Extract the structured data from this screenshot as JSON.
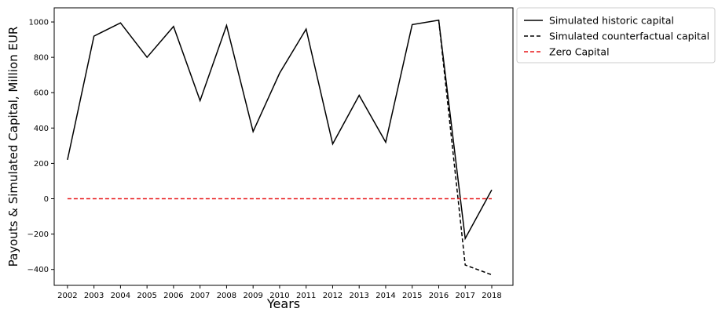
{
  "chart_data": {
    "type": "line",
    "title": "",
    "xlabel": "Years",
    "ylabel": "Payouts & Simulated Capital, Million EUR",
    "x": [
      2002,
      2003,
      2004,
      2005,
      2006,
      2007,
      2008,
      2009,
      2010,
      2011,
      2012,
      2013,
      2014,
      2015,
      2016,
      2017,
      2018
    ],
    "x_tick_labels": [
      "2002",
      "2003",
      "2004",
      "2005",
      "2006",
      "2007",
      "2008",
      "2009",
      "2010",
      "2011",
      "2012",
      "2013",
      "2014",
      "2015",
      "2016",
      "2017",
      "2018"
    ],
    "xlim": [
      2001.5,
      2018.8
    ],
    "ylim": [
      -490,
      1080
    ],
    "y_ticks": [
      -400,
      -200,
      0,
      200,
      400,
      600,
      800,
      1000
    ],
    "y_tick_labels": [
      "−400",
      "−200",
      "0",
      "200",
      "400",
      "600",
      "800",
      "1000"
    ],
    "grid": false,
    "legend_position": "outside-top-right",
    "series": [
      {
        "name": "Simulated historic capital",
        "color": "#000000",
        "dash": "solid",
        "x": [
          2002,
          2003,
          2004,
          2005,
          2006,
          2007,
          2008,
          2009,
          2010,
          2011,
          2012,
          2013,
          2014,
          2015,
          2016,
          2017,
          2018
        ],
        "values": [
          220,
          920,
          995,
          800,
          975,
          555,
          980,
          380,
          710,
          960,
          310,
          585,
          320,
          985,
          1010,
          -225,
          50
        ]
      },
      {
        "name": "Simulated counterfactual capital",
        "color": "#000000",
        "dash": "dashed",
        "x": [
          2016,
          2017,
          2018
        ],
        "values": [
          1010,
          -375,
          -430
        ]
      },
      {
        "name": "Zero Capital",
        "color": "#e8191c",
        "dash": "dashed",
        "x": [
          2002,
          2018
        ],
        "values": [
          0,
          0
        ]
      }
    ]
  }
}
